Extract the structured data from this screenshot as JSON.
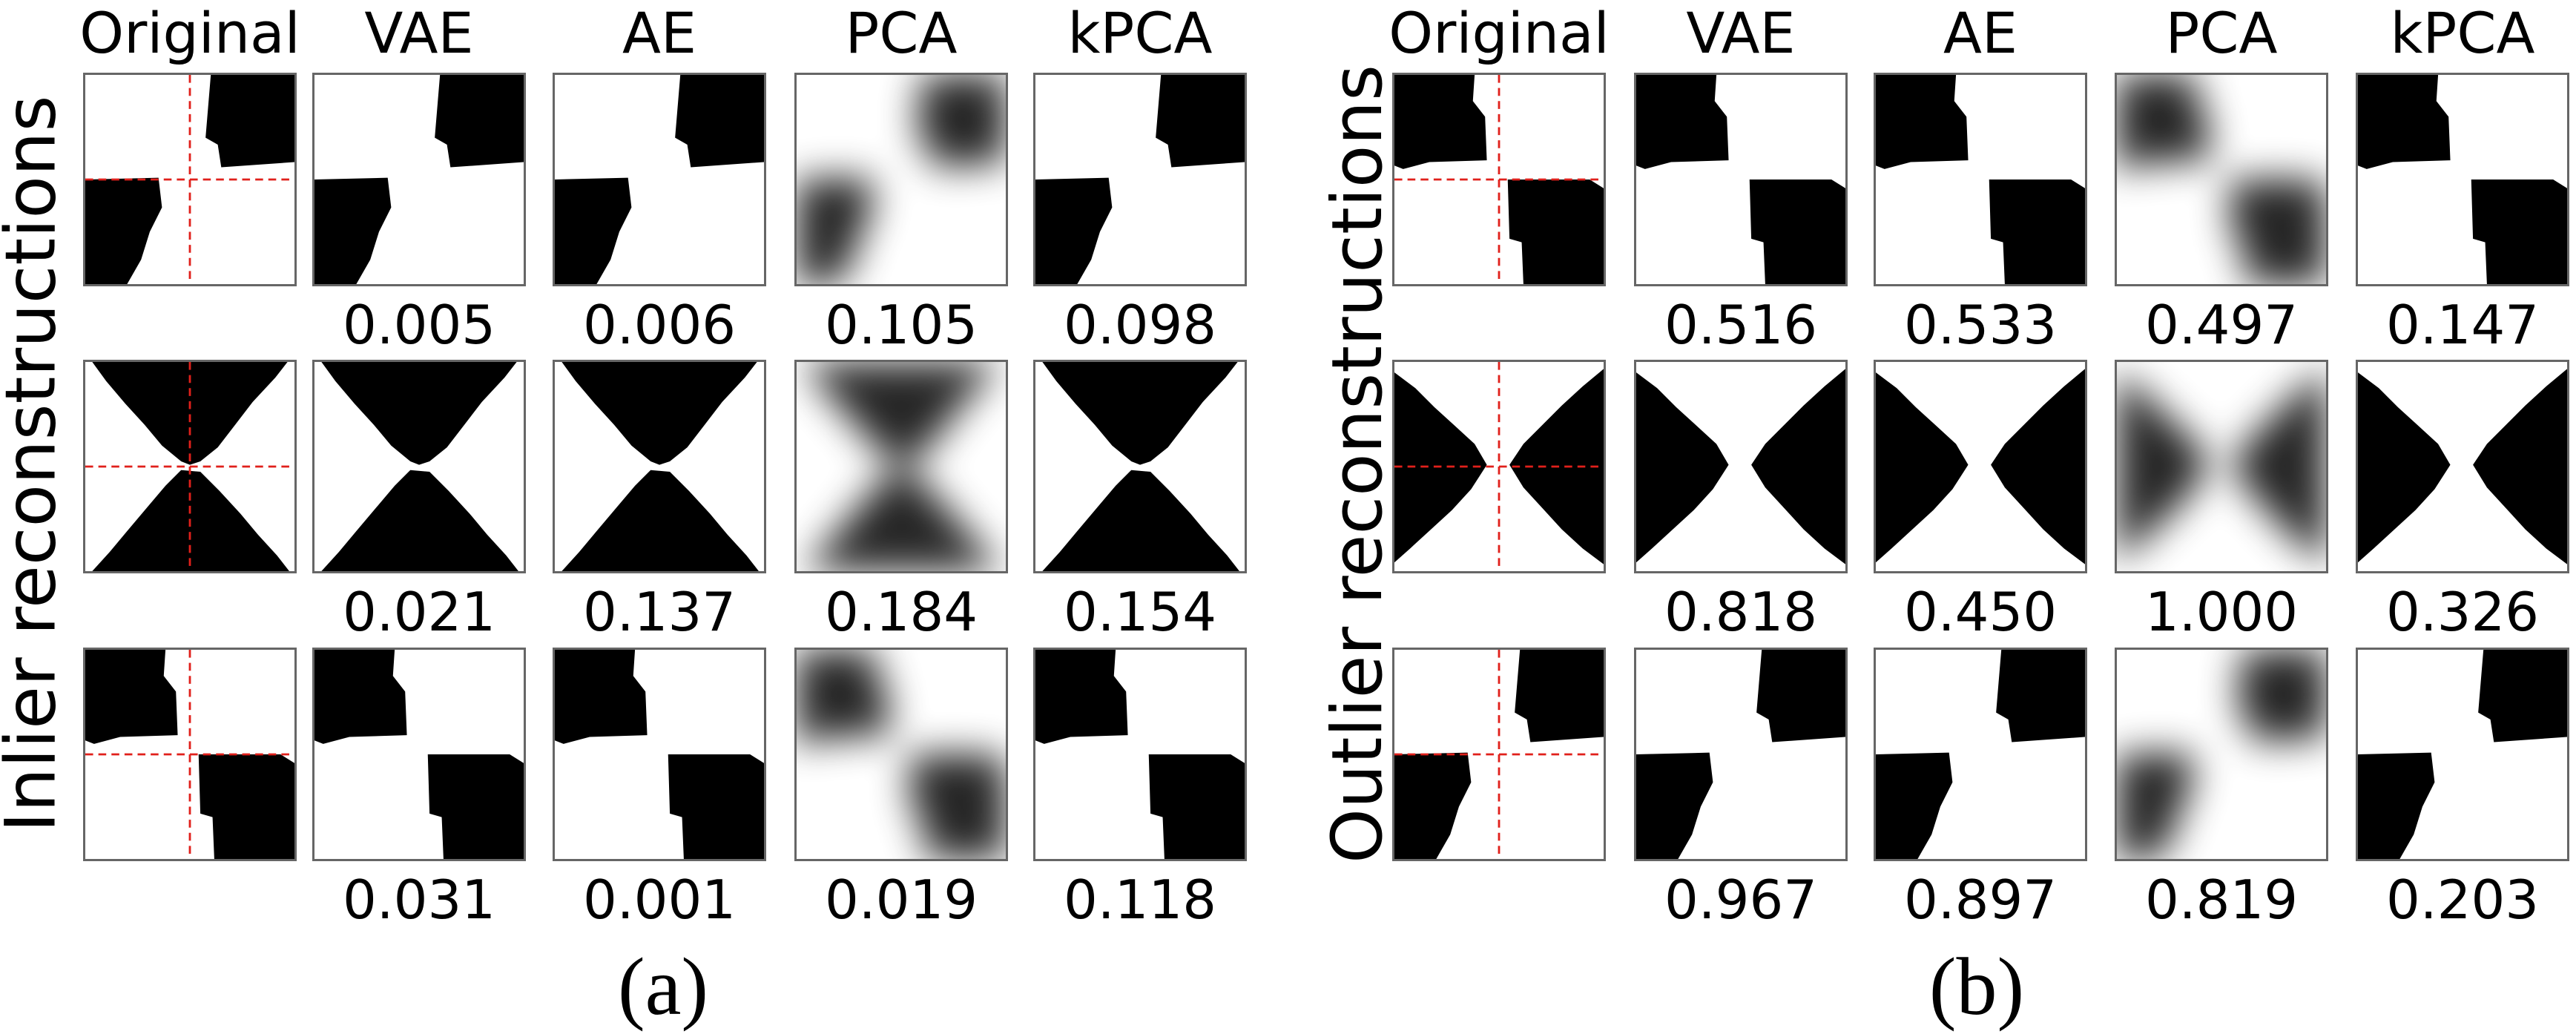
{
  "panels": [
    {
      "id": "a",
      "caption": "(a)",
      "row_label": "Inlier reconstructions",
      "columns": [
        "Original",
        "VAE",
        "AE",
        "PCA",
        "kPCA"
      ],
      "rows": [
        {
          "pattern": "diag",
          "scores": [
            "0.005",
            "0.006",
            "0.105",
            "0.098"
          ]
        },
        {
          "pattern": "hourglass",
          "scores": [
            "0.021",
            "0.137",
            "0.184",
            "0.154"
          ]
        },
        {
          "pattern": "anti",
          "scores": [
            "0.031",
            "0.001",
            "0.019",
            "0.118"
          ]
        }
      ]
    },
    {
      "id": "b",
      "caption": "(b)",
      "row_label": "Outlier reconstructions",
      "columns": [
        "Original",
        "VAE",
        "AE",
        "PCA",
        "kPCA"
      ],
      "rows": [
        {
          "pattern": "anti",
          "scores": [
            "0.516",
            "0.533",
            "0.497",
            "0.147"
          ]
        },
        {
          "pattern": "bowtie",
          "scores": [
            "0.818",
            "0.450",
            "1.000",
            "0.326"
          ]
        },
        {
          "pattern": "diag",
          "scores": [
            "0.967",
            "0.897",
            "0.819",
            "0.203"
          ]
        }
      ]
    }
  ],
  "colors": {
    "crosshair": "#e0201b",
    "shape": "#000000",
    "background": "#ffffff",
    "tile_border": "#666666"
  }
}
